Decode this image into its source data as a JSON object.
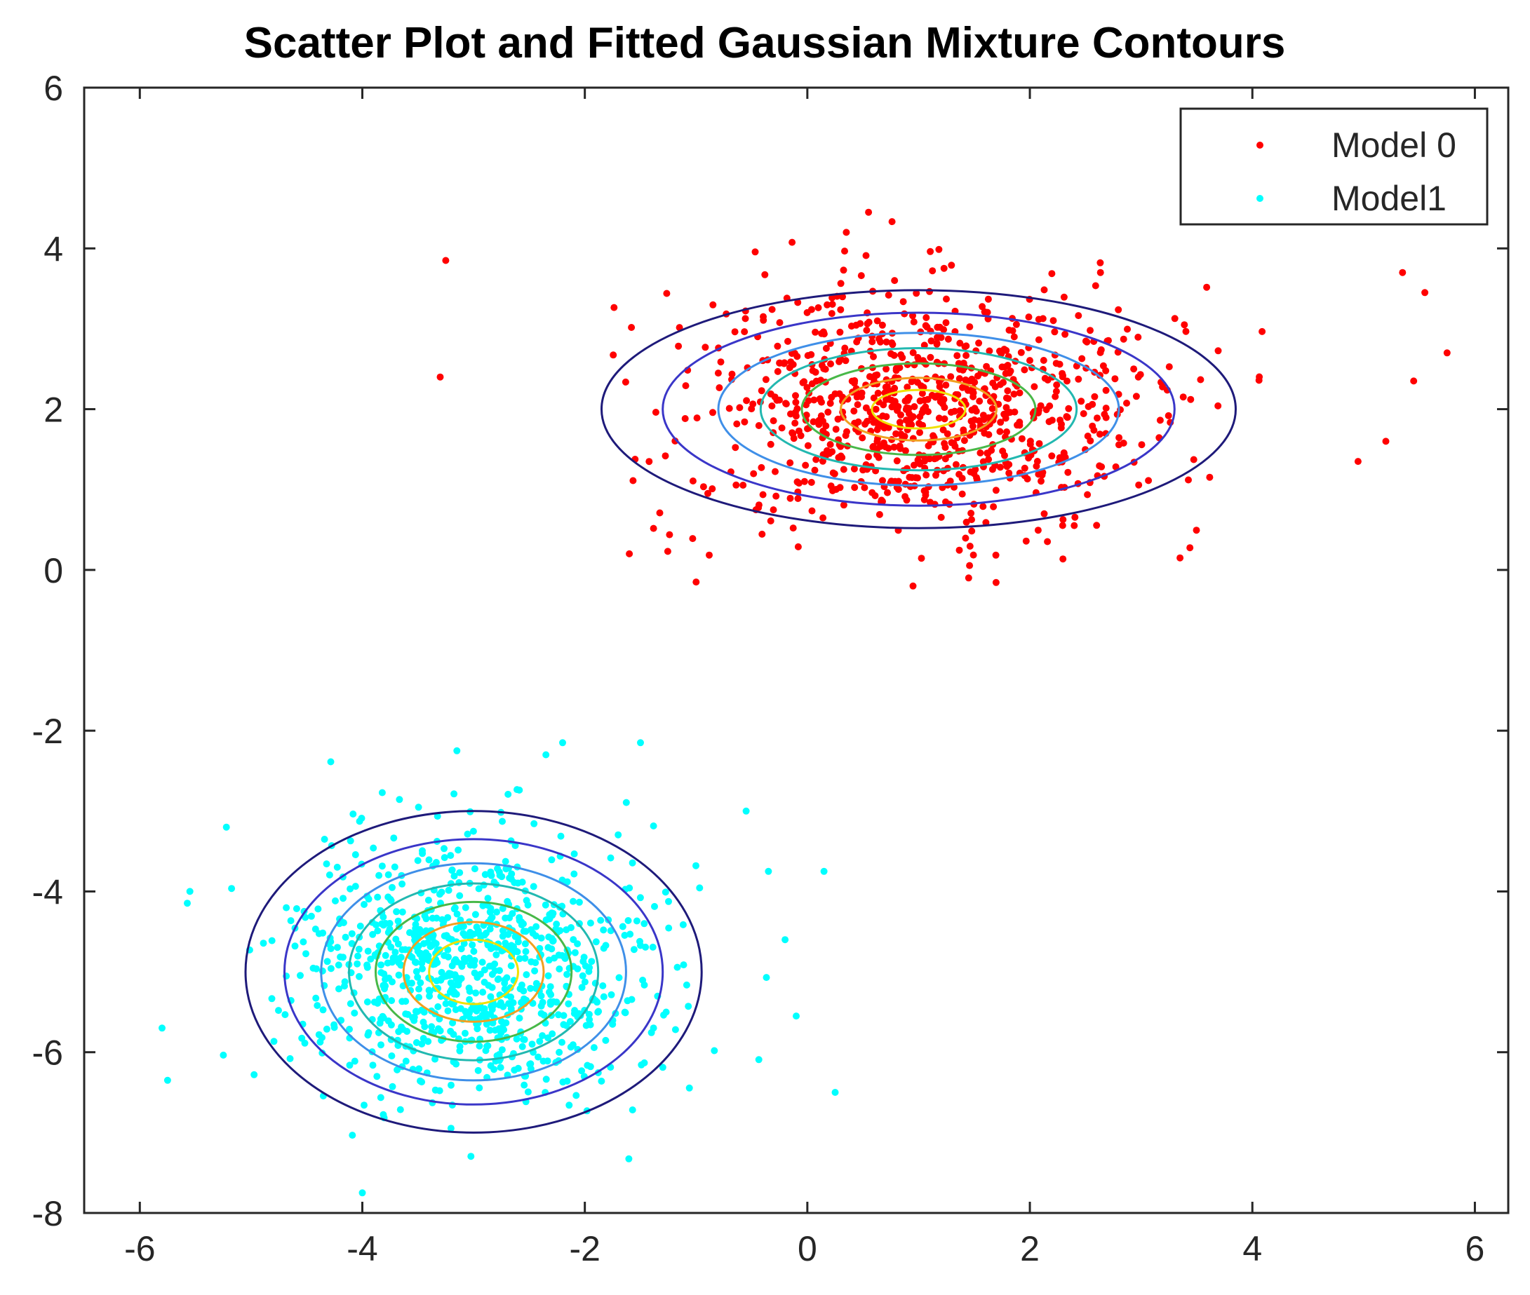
{
  "chart_data": {
    "type": "scatter",
    "title": "Scatter Plot and Fitted Gaussian Mixture Contours",
    "xlabel": "",
    "ylabel": "",
    "xlim": [
      -6.5,
      6.3
    ],
    "ylim": [
      -8,
      6
    ],
    "xticks": [
      -6,
      -4,
      -2,
      0,
      2,
      4,
      6
    ],
    "yticks": [
      -8,
      -6,
      -4,
      -2,
      0,
      2,
      4,
      6
    ],
    "grid": false,
    "legend_placement": "top-right",
    "series": [
      {
        "name": "Model 0",
        "color": "#ff0000",
        "center": [
          1.0,
          2.0
        ],
        "std": [
          1.05,
          0.75
        ],
        "count": 900,
        "extreme_points": [
          [
            -3.25,
            3.85
          ],
          [
            -3.3,
            2.4
          ],
          [
            5.35,
            3.7
          ],
          [
            5.55,
            3.45
          ],
          [
            5.75,
            2.7
          ],
          [
            5.45,
            2.35
          ],
          [
            5.2,
            1.6
          ],
          [
            4.95,
            1.35
          ],
          [
            0.55,
            4.45
          ],
          [
            0.35,
            4.2
          ],
          [
            -1.0,
            -0.15
          ],
          [
            0.95,
            -0.2
          ],
          [
            1.45,
            -0.1
          ],
          [
            3.35,
            0.15
          ],
          [
            -1.6,
            0.2
          ]
        ]
      },
      {
        "name": "Model1",
        "color": "#00ffff",
        "center": [
          -3.0,
          -5.0
        ],
        "std": [
          0.82,
          0.8
        ],
        "count": 900,
        "extreme_points": [
          [
            -5.8,
            -5.7
          ],
          [
            -5.75,
            -6.35
          ],
          [
            -5.55,
            -4.0
          ],
          [
            0.15,
            -3.75
          ],
          [
            0.25,
            -6.5
          ],
          [
            -2.2,
            -2.15
          ],
          [
            -2.35,
            -2.3
          ],
          [
            -1.5,
            -2.15
          ],
          [
            -4.0,
            -7.75
          ],
          [
            -0.1,
            -5.55
          ],
          [
            -0.2,
            -4.6
          ],
          [
            -0.55,
            -3.0
          ],
          [
            -3.15,
            -2.25
          ],
          [
            -0.35,
            -3.75
          ]
        ]
      }
    ],
    "contours": [
      {
        "series": "Model 0",
        "center": [
          1.0,
          2.0
        ],
        "radii": [
          [
            2.85,
            1.48
          ],
          [
            2.3,
            1.2
          ],
          [
            1.8,
            0.95
          ],
          [
            1.42,
            0.76
          ],
          [
            1.05,
            0.57
          ],
          [
            0.7,
            0.39
          ],
          [
            0.42,
            0.24
          ]
        ],
        "colors": [
          "#1e1a7a",
          "#3a36c8",
          "#3f8fe8",
          "#22b8b0",
          "#48b848",
          "#f0a020",
          "#f0e000"
        ]
      },
      {
        "series": "Model1",
        "center": [
          -3.0,
          -5.0
        ],
        "radii": [
          [
            2.05,
            2.0
          ],
          [
            1.7,
            1.65
          ],
          [
            1.37,
            1.35
          ],
          [
            1.12,
            1.1
          ],
          [
            0.88,
            0.87
          ],
          [
            0.63,
            0.62
          ],
          [
            0.4,
            0.4
          ]
        ],
        "colors": [
          "#1e1a7a",
          "#3a36c8",
          "#3f8fe8",
          "#22b8b0",
          "#48b848",
          "#f0a020",
          "#f0e000"
        ]
      }
    ]
  }
}
